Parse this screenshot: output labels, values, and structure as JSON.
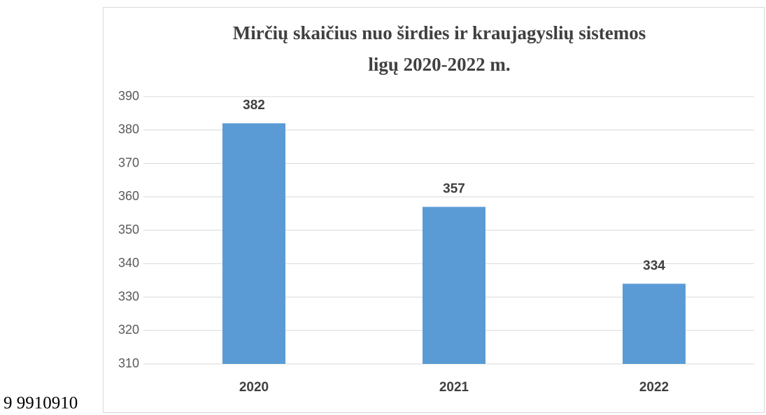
{
  "chart_data": {
    "type": "bar",
    "title": [
      "Mirčių skaičius nuo širdies ir kraujagyslių sistemos",
      "ligų 2020-2022 m."
    ],
    "categories": [
      "2020",
      "2021",
      "2022"
    ],
    "values": [
      382,
      357,
      334
    ],
    "color": "#5b9bd5",
    "ylim": [
      310,
      390
    ],
    "yticks": [
      310,
      320,
      330,
      340,
      350,
      360,
      370,
      380,
      390
    ],
    "grid": true
  },
  "side_text": "9 9910910"
}
